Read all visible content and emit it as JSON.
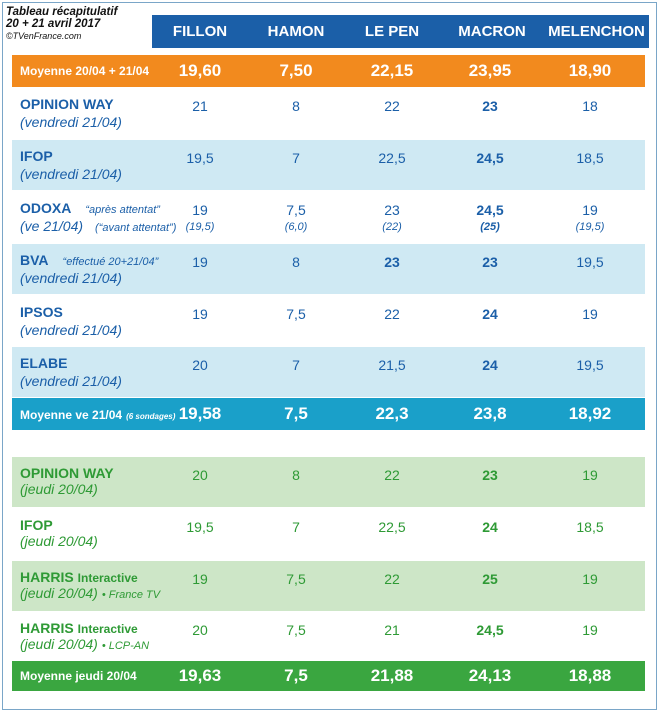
{
  "title": {
    "line1": "Tableau récapitulatif",
    "line2": "20 + 21 avril 2017",
    "credit": "©TVenFrance.com"
  },
  "columns": [
    "FILLON",
    "HAMON",
    "LE PEN",
    "MACRON",
    "MELENCHON"
  ],
  "colors": {
    "header": "#1b5fa8",
    "orange": "#f28a1e",
    "cyan": "#1aa0c9",
    "green": "#3aa640",
    "light_blue": "#cfe9f3",
    "light_green": "#cde6c7"
  },
  "average_all": {
    "label": "Moyenne 20/04 + 21/04",
    "values": [
      "19,60",
      "7,50",
      "22,15",
      "23,95",
      "18,90"
    ]
  },
  "rows_21": [
    {
      "name": "OPINION WAY",
      "date": "(vendredi 21/04)",
      "note": "",
      "note2": "",
      "values": [
        "21",
        "8",
        "22",
        "23",
        "18"
      ],
      "bold": [
        false,
        false,
        false,
        true,
        false
      ],
      "subvalues": []
    },
    {
      "name": "IFOP",
      "date": "(vendredi 21/04)",
      "note": "",
      "note2": "",
      "values": [
        "19,5",
        "7",
        "22,5",
        "24,5",
        "18,5"
      ],
      "bold": [
        false,
        false,
        false,
        true,
        false
      ],
      "subvalues": []
    },
    {
      "name": "ODOXA",
      "date": "(ve 21/04)",
      "note": "“après attentat”",
      "note2": "(“avant attentat”)",
      "values": [
        "19",
        "7,5",
        "23",
        "24,5",
        "19"
      ],
      "bold": [
        false,
        false,
        false,
        true,
        false
      ],
      "subvalues": [
        "(19,5)",
        "(6,0)",
        "(22)",
        "(25)",
        "(19,5)"
      ]
    },
    {
      "name": "BVA",
      "date": "(vendredi 21/04)",
      "note": "“effectué 20+21/04”",
      "note2": "",
      "values": [
        "19",
        "8",
        "23",
        "23",
        "19,5"
      ],
      "bold": [
        false,
        false,
        true,
        true,
        false
      ],
      "subvalues": []
    },
    {
      "name": "IPSOS",
      "date": "(vendredi 21/04)",
      "note": "",
      "note2": "",
      "values": [
        "19",
        "7,5",
        "22",
        "24",
        "19"
      ],
      "bold": [
        false,
        false,
        false,
        true,
        false
      ],
      "subvalues": []
    },
    {
      "name": "ELABE",
      "date": "(vendredi 21/04)",
      "note": "",
      "note2": "",
      "values": [
        "20",
        "7",
        "21,5",
        "24",
        "19,5"
      ],
      "bold": [
        false,
        false,
        false,
        true,
        false
      ],
      "subvalues": []
    }
  ],
  "average_21": {
    "label": "Moyenne ve 21/04",
    "label_small": "(6 sondages)",
    "values": [
      "19,58",
      "7,5",
      "22,3",
      "23,8",
      "18,92"
    ]
  },
  "rows_20": [
    {
      "name": "OPINION WAY",
      "name_suffix": "",
      "date": "(jeudi 20/04)",
      "date_suffix": "",
      "values": [
        "20",
        "8",
        "22",
        "23",
        "19"
      ],
      "bold": [
        false,
        false,
        false,
        true,
        false
      ]
    },
    {
      "name": "IFOP",
      "name_suffix": "",
      "date": "(jeudi 20/04)",
      "date_suffix": "",
      "values": [
        "19,5",
        "7",
        "22,5",
        "24",
        "18,5"
      ],
      "bold": [
        false,
        false,
        false,
        true,
        false
      ]
    },
    {
      "name": "HARRIS",
      "name_suffix": "Interactive",
      "date": "(jeudi 20/04)",
      "date_suffix": "• France TV",
      "values": [
        "19",
        "7,5",
        "22",
        "25",
        "19"
      ],
      "bold": [
        false,
        false,
        false,
        true,
        false
      ]
    },
    {
      "name": "HARRIS",
      "name_suffix": "Interactive",
      "date": "(jeudi 20/04)",
      "date_suffix": "• LCP-AN",
      "values": [
        "20",
        "7,5",
        "21",
        "24,5",
        "19"
      ],
      "bold": [
        false,
        false,
        false,
        true,
        false
      ]
    }
  ],
  "average_20": {
    "label": "Moyenne jeudi 20/04",
    "values": [
      "19,63",
      "7,5",
      "21,88",
      "24,13",
      "18,88"
    ]
  }
}
